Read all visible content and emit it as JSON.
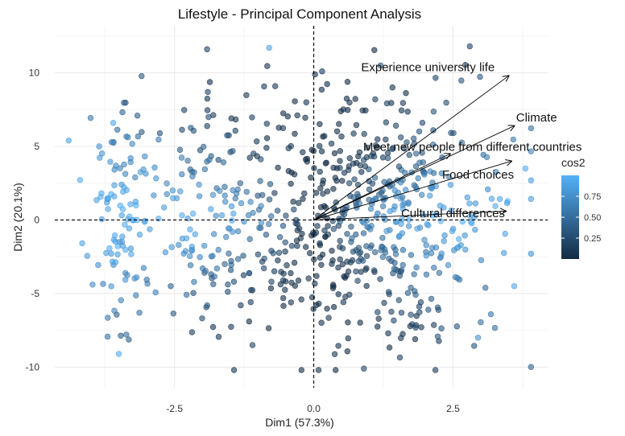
{
  "chart_data": {
    "type": "scatter",
    "title": "Lifestyle - Principal Component Analysis",
    "xlabel": "Dim1 (57.3%)",
    "ylabel": "Dim2 (20.1%)",
    "xlim": [
      -4.65,
      4.2
    ],
    "ylim": [
      -11.4,
      13.2
    ],
    "x_ticks": [
      -2.5,
      0.0,
      2.5
    ],
    "x_tick_labels": [
      "-2.5",
      "0.0",
      "2.5"
    ],
    "y_ticks": [
      -10,
      -5,
      0,
      5,
      10
    ],
    "y_tick_labels": [
      "-10",
      "-5",
      "0",
      "5",
      "10"
    ],
    "grid": true,
    "reference_lines": [
      {
        "axis": "x",
        "value": 0,
        "style": "dashed"
      },
      {
        "axis": "y",
        "value": 0,
        "style": "dashed"
      }
    ],
    "legend": {
      "title": "cos2",
      "position": "right",
      "ticks": [
        0.25,
        0.5,
        0.75
      ],
      "tick_labels": [
        "0.25",
        "0.50",
        "0.75"
      ],
      "range": [
        0.0,
        1.0
      ],
      "colors": {
        "low": "#132B43",
        "high": "#56B1F7"
      }
    },
    "variables": [
      {
        "name": "Experience  university life",
        "x": 3.5,
        "y": 9.8
      },
      {
        "name": "Climate",
        "x": 3.6,
        "y": 6.4
      },
      {
        "name": "Meet new people from different countries",
        "x": 2.45,
        "y": 4.5
      },
      {
        "name": "Food choices",
        "x": 3.55,
        "y": 4.0
      },
      {
        "name": "Cultural differences",
        "x": 3.45,
        "y": 0.6
      }
    ],
    "variable_label_offsets": {
      "Experience  university life": [
        -1.45,
        0.3
      ],
      "Climate": [
        0.4,
        0.3
      ],
      "Meet new people from different countries": [
        0.4,
        0.2
      ],
      "Food choices": [
        -0.6,
        -1.2
      ],
      "Cultural differences": [
        -0.95,
        -0.4
      ]
    },
    "individuals_count": 800,
    "individuals_distribution": "cloud centred near the origin, x roughly -4.4 to 3.9, y roughly -10 to 12; cos2 high (light blue) at the left edge (x < -2.5) and along the first axis, low (dark navy) near the origin",
    "points_sample": [
      {
        "x": -3.6,
        "y": 6.6,
        "cos2": 0.95
      },
      {
        "x": -4.4,
        "y": 5.4,
        "cos2": 0.95
      },
      {
        "x": -3.5,
        "y": -9.1,
        "cos2": 0.97
      },
      {
        "x": -0.8,
        "y": 11.7,
        "cos2": 0.9
      },
      {
        "x": 0.15,
        "y": 10.1,
        "cos2": 0.15
      },
      {
        "x": 1.2,
        "y": 10.5,
        "cos2": 0.35
      },
      {
        "x": 3.8,
        "y": 3.5,
        "cos2": 0.97
      },
      {
        "x": 3.6,
        "y": -4.5,
        "cos2": 0.95
      },
      {
        "x": 0.9,
        "y": -10.1,
        "cos2": 0.25
      },
      {
        "x": -1.1,
        "y": -8.5,
        "cos2": 0.2
      },
      {
        "x": 2.95,
        "y": -8.0,
        "cos2": 0.8
      }
    ]
  }
}
